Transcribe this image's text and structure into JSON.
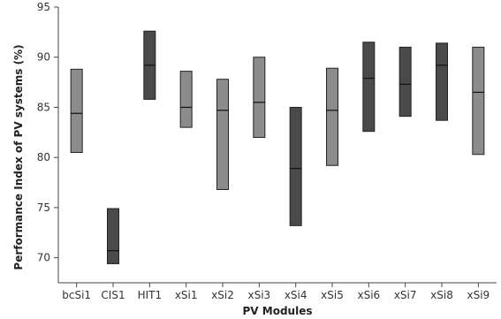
{
  "chart_data": {
    "type": "boxplot",
    "xlabel": "PV Modules",
    "ylabel": "Performance Index of PV systems (%)",
    "ylim": [
      67.5,
      95
    ],
    "yticks": [
      70,
      75,
      80,
      85,
      90,
      95
    ],
    "series": [
      {
        "category": "bcSi1",
        "low": 80.5,
        "median": 84.4,
        "high": 88.8,
        "color": "#8c8c8c"
      },
      {
        "category": "CIS1",
        "low": 69.4,
        "median": 70.7,
        "high": 74.9,
        "color": "#4a4a4a"
      },
      {
        "category": "HIT1",
        "low": 85.8,
        "median": 89.2,
        "high": 92.6,
        "color": "#4a4a4a"
      },
      {
        "category": "xSi1",
        "low": 83.0,
        "median": 85.0,
        "high": 88.6,
        "color": "#8c8c8c"
      },
      {
        "category": "xSi2",
        "low": 76.8,
        "median": 84.7,
        "high": 87.8,
        "color": "#8c8c8c"
      },
      {
        "category": "xSi3",
        "low": 82.0,
        "median": 85.5,
        "high": 90.0,
        "color": "#8c8c8c"
      },
      {
        "category": "xSi4",
        "low": 73.2,
        "median": 78.9,
        "high": 85.0,
        "color": "#4a4a4a"
      },
      {
        "category": "xSi5",
        "low": 79.2,
        "median": 84.7,
        "high": 88.9,
        "color": "#8c8c8c"
      },
      {
        "category": "xSi6",
        "low": 82.6,
        "median": 87.9,
        "high": 91.5,
        "color": "#4a4a4a"
      },
      {
        "category": "xSi7",
        "low": 84.1,
        "median": 87.3,
        "high": 91.0,
        "color": "#4a4a4a"
      },
      {
        "category": "xSi8",
        "low": 83.7,
        "median": 89.2,
        "high": 91.4,
        "color": "#4a4a4a"
      },
      {
        "category": "xSi9",
        "low": 80.3,
        "median": 86.5,
        "high": 91.0,
        "color": "#8c8c8c"
      }
    ]
  }
}
